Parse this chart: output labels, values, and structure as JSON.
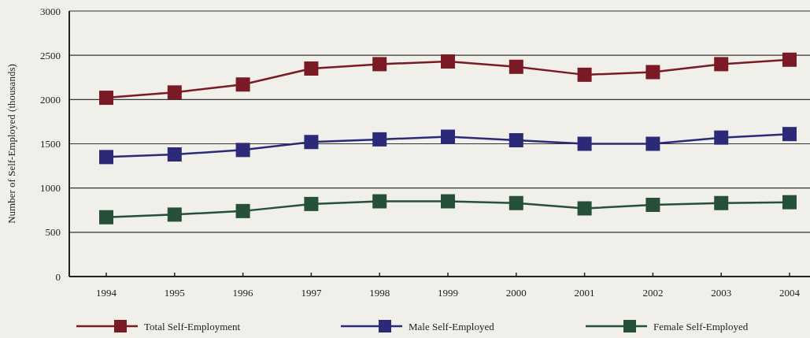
{
  "chart_data": {
    "type": "line",
    "ylabel": "Number of Self-Employed (thousands)",
    "categories": [
      "1994",
      "1995",
      "1996",
      "1997",
      "1998",
      "1999",
      "2000",
      "2001",
      "2002",
      "2003",
      "2004"
    ],
    "series": [
      {
        "name": "Total Self-Employment",
        "color": "#7a1a24",
        "values": [
          2020,
          2080,
          2170,
          2350,
          2400,
          2430,
          2370,
          2280,
          2310,
          2400,
          2450
        ]
      },
      {
        "name": "Male Self-Employed",
        "color": "#2c2a78",
        "values": [
          1350,
          1380,
          1430,
          1520,
          1550,
          1580,
          1540,
          1500,
          1500,
          1570,
          1610
        ]
      },
      {
        "name": "Female Self-Employed",
        "color": "#27503b",
        "values": [
          670,
          700,
          740,
          820,
          850,
          850,
          830,
          770,
          810,
          830,
          840
        ]
      }
    ],
    "ylim": [
      0,
      3000
    ],
    "yticks": [
      0,
      500,
      1000,
      1500,
      2000,
      2500,
      3000
    ],
    "grid": "y",
    "legend": "bottom",
    "marker": "square",
    "line_style": "solid"
  }
}
